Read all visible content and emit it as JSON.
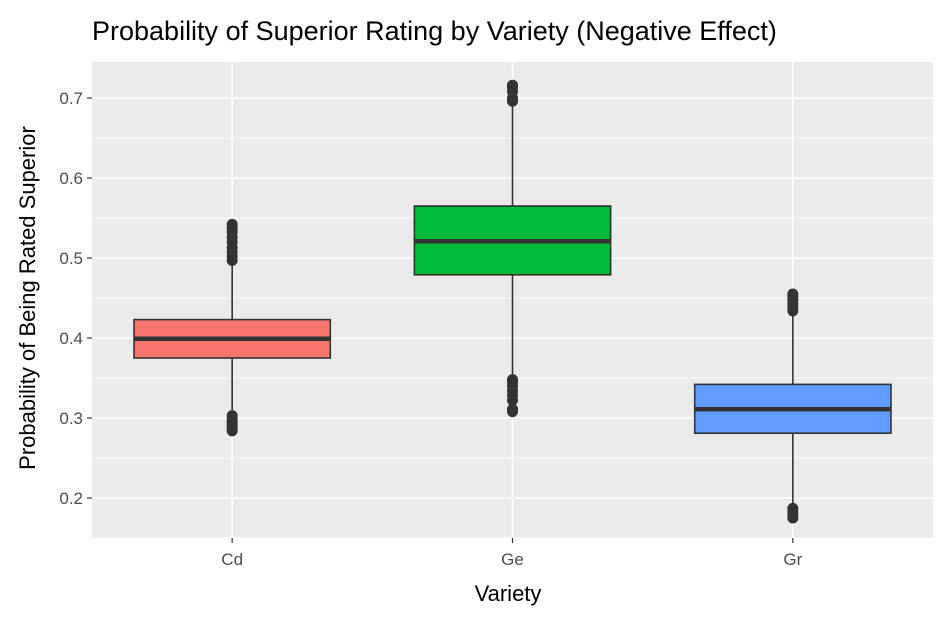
{
  "chart_data": {
    "type": "boxplot",
    "title": "Probability of Superior Rating by Variety (Negative Effect)",
    "xlabel": "Variety",
    "ylabel": "Probability of Being Rated Superior",
    "ylim": [
      0.15,
      0.745
    ],
    "y_ticks": [
      0.2,
      0.3,
      0.4,
      0.5,
      0.6,
      0.7
    ],
    "y_tick_labels": [
      "0.2",
      "0.3",
      "0.4",
      "0.5",
      "0.6",
      "0.7"
    ],
    "grid": true,
    "legend": "none",
    "categories": [
      "Cd",
      "Ge",
      "Gr"
    ],
    "boxes": [
      {
        "category": "Cd",
        "color": "#F8766D",
        "lower_whisker": 0.306,
        "q1": 0.375,
        "median": 0.399,
        "q3": 0.423,
        "upper_whisker": 0.492,
        "outliers": [
          0.284,
          0.287,
          0.29,
          0.293,
          0.296,
          0.3,
          0.303,
          0.497,
          0.502,
          0.507,
          0.513,
          0.52,
          0.526,
          0.532,
          0.537,
          0.542
        ]
      },
      {
        "category": "Ge",
        "color": "#00BA38",
        "lower_whisker": 0.352,
        "q1": 0.479,
        "median": 0.521,
        "q3": 0.565,
        "upper_whisker": 0.692,
        "outliers": [
          0.308,
          0.311,
          0.322,
          0.328,
          0.334,
          0.34,
          0.345,
          0.348,
          0.696,
          0.7,
          0.708,
          0.713,
          0.716
        ]
      },
      {
        "category": "Gr",
        "color": "#619CFF",
        "lower_whisker": 0.19,
        "q1": 0.281,
        "median": 0.311,
        "q3": 0.342,
        "upper_whisker": 0.43,
        "outliers": [
          0.175,
          0.179,
          0.183,
          0.187,
          0.434,
          0.438,
          0.443,
          0.448,
          0.452,
          0.455
        ]
      }
    ]
  }
}
